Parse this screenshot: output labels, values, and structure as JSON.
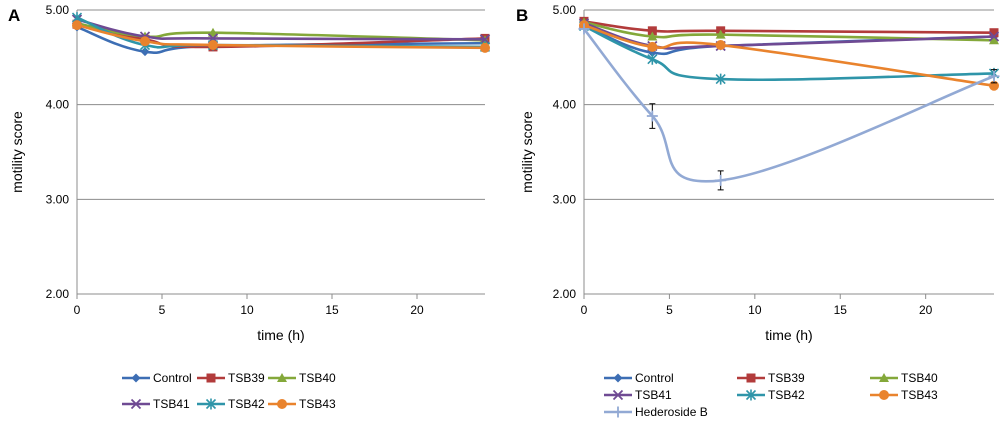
{
  "colors": {
    "Control": "#3d6eb4",
    "TSB39": "#b23b3b",
    "TSB40": "#84a83a",
    "TSB41": "#6f4a93",
    "TSB42": "#2f95a9",
    "TSB43": "#e9832d",
    "Hederoside B": "#92a9d4"
  },
  "chart_data": [
    {
      "panel": "A",
      "type": "line",
      "xlabel": "time (h)",
      "ylabel": "motility score",
      "xlim": [
        0,
        24
      ],
      "ylim": [
        2.0,
        5.0
      ],
      "xticks": [
        0,
        5,
        10,
        15,
        20
      ],
      "yticks": [
        "2.00",
        "3.00",
        "4.00",
        "5.00"
      ],
      "x": [
        0,
        4,
        8,
        24
      ],
      "series": [
        {
          "name": "Control",
          "marker": "diamond",
          "values": [
            4.82,
            4.56,
            4.62,
            4.65
          ]
        },
        {
          "name": "TSB39",
          "marker": "square",
          "values": [
            4.85,
            4.69,
            4.61,
            4.7
          ]
        },
        {
          "name": "TSB40",
          "marker": "triangle",
          "values": [
            4.86,
            4.72,
            4.76,
            4.68
          ]
        },
        {
          "name": "TSB41",
          "marker": "x",
          "values": [
            4.9,
            4.72,
            4.7,
            4.69
          ]
        },
        {
          "name": "TSB42",
          "marker": "star",
          "values": [
            4.92,
            4.63,
            4.63,
            4.61
          ]
        },
        {
          "name": "TSB43",
          "marker": "circle",
          "values": [
            4.84,
            4.67,
            4.63,
            4.6
          ]
        }
      ],
      "legend": {
        "placement": "bottom",
        "columns": 3,
        "entries": [
          "Control",
          "TSB39",
          "TSB40",
          "TSB41",
          "TSB42",
          "TSB43"
        ]
      }
    },
    {
      "panel": "B",
      "type": "line",
      "xlabel": "time (h)",
      "ylabel": "motility score",
      "xlim": [
        0,
        24
      ],
      "ylim": [
        2.0,
        5.0
      ],
      "xticks": [
        0,
        5,
        10,
        15,
        20
      ],
      "yticks": [
        "2.00",
        "3.00",
        "4.00",
        "5.00"
      ],
      "x": [
        0,
        4,
        8,
        24
      ],
      "series": [
        {
          "name": "Control",
          "marker": "diamond",
          "values": [
            4.84,
            4.55,
            4.62,
            4.72
          ]
        },
        {
          "name": "TSB39",
          "marker": "square",
          "values": [
            4.88,
            4.78,
            4.78,
            4.76
          ]
        },
        {
          "name": "TSB40",
          "marker": "triangle",
          "values": [
            4.87,
            4.72,
            4.74,
            4.68
          ]
        },
        {
          "name": "TSB41",
          "marker": "x",
          "values": [
            4.86,
            4.62,
            4.62,
            4.72
          ]
        },
        {
          "name": "TSB42",
          "marker": "star",
          "values": [
            4.83,
            4.48,
            4.27,
            4.33
          ]
        },
        {
          "name": "TSB43",
          "marker": "circle",
          "values": [
            4.84,
            4.61,
            4.63,
            4.2
          ]
        },
        {
          "name": "Hederoside B",
          "marker": "plus",
          "values": [
            4.8,
            3.88,
            3.2,
            4.3
          ],
          "error": [
            0.0,
            0.13,
            0.1,
            0.07
          ]
        }
      ],
      "legend": {
        "placement": "bottom",
        "columns": 3,
        "entries": [
          "Control",
          "TSB39",
          "TSB40",
          "TSB41",
          "TSB42",
          "TSB43",
          "Hederoside B"
        ]
      }
    }
  ]
}
